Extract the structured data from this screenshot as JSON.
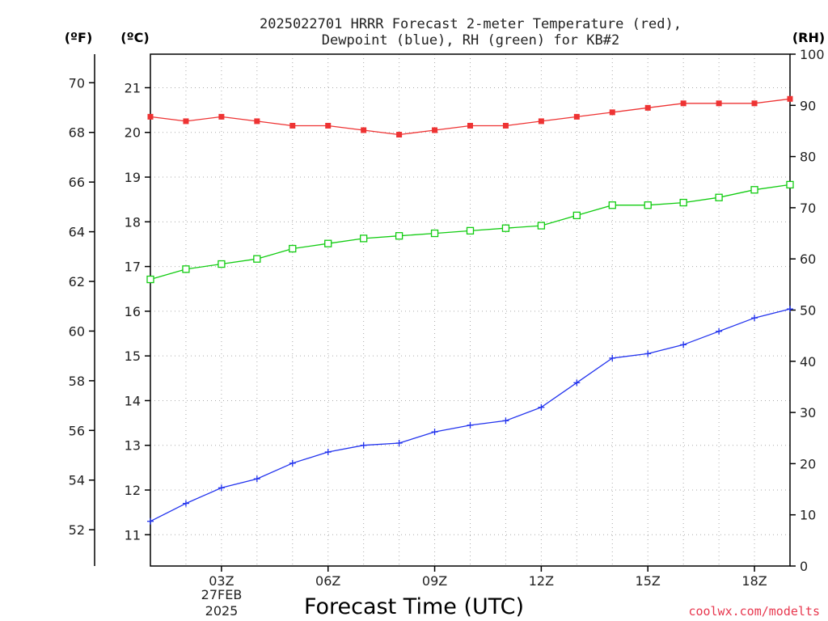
{
  "header": {
    "title_line1": "2025022701 HRRR Forecast 2-meter Temperature (red),",
    "title_line2": "Dewpoint (blue), RH (green) for KB#2",
    "unit_f": "(ºF)",
    "unit_c": "(ºC)",
    "unit_rh": "(RH)"
  },
  "footer": {
    "xlabel": "Forecast Time (UTC)",
    "date_line1": "27FEB",
    "date_line2": "2025",
    "credit": "coolwx.com/modelts"
  },
  "colors": {
    "temperature": "#ee3333",
    "dewpoint": "#2233ee",
    "rh": "#11cc11",
    "axis": "#000000"
  },
  "chart_data": {
    "type": "line",
    "title": "2025022701 HRRR Forecast 2-meter Temperature (red), Dewpoint (blue), RH (green) for KB#2",
    "xlabel": "Forecast Time (UTC)",
    "x": [
      1,
      2,
      3,
      4,
      5,
      6,
      7,
      8,
      9,
      10,
      11,
      12,
      13,
      14,
      15,
      16,
      17,
      18,
      19
    ],
    "x_range": [
      1,
      19
    ],
    "x_ticks": [
      3,
      6,
      9,
      12,
      15,
      18
    ],
    "x_tick_labels": [
      "03Z",
      "06Z",
      "09Z",
      "12Z",
      "15Z",
      "18Z"
    ],
    "y_celsius_range": [
      10.3,
      21.75
    ],
    "y_celsius_ticks": [
      11,
      12,
      13,
      14,
      15,
      16,
      17,
      18,
      19,
      20,
      21
    ],
    "y_fahrenheit_ticks": [
      52,
      54,
      56,
      58,
      60,
      62,
      64,
      66,
      68,
      70
    ],
    "rh_range": [
      0,
      100
    ],
    "rh_ticks": [
      0,
      10,
      20,
      30,
      40,
      50,
      60,
      70,
      80,
      90,
      100
    ],
    "grid": true,
    "series": [
      {
        "name": "Temperature",
        "axis": "celsius",
        "marker": "filled-square",
        "values": [
          20.35,
          20.25,
          20.35,
          20.25,
          20.15,
          20.15,
          20.05,
          19.95,
          20.05,
          20.15,
          20.15,
          20.25,
          20.35,
          20.45,
          20.55,
          20.65,
          20.65,
          20.65,
          20.75
        ]
      },
      {
        "name": "Dewpoint",
        "axis": "celsius",
        "marker": "plus",
        "values": [
          11.3,
          11.7,
          12.05,
          12.25,
          12.6,
          12.85,
          13.0,
          13.05,
          13.3,
          13.45,
          13.55,
          13.85,
          14.4,
          14.95,
          15.05,
          15.25,
          15.55,
          15.85,
          16.05
        ]
      },
      {
        "name": "RH",
        "axis": "rh",
        "marker": "open-square",
        "values": [
          56,
          58,
          59,
          60,
          62,
          63,
          64,
          64.5,
          65,
          65.5,
          66,
          66.5,
          68.5,
          70.5,
          70.5,
          71,
          72,
          73.5,
          74.5
        ]
      }
    ]
  }
}
